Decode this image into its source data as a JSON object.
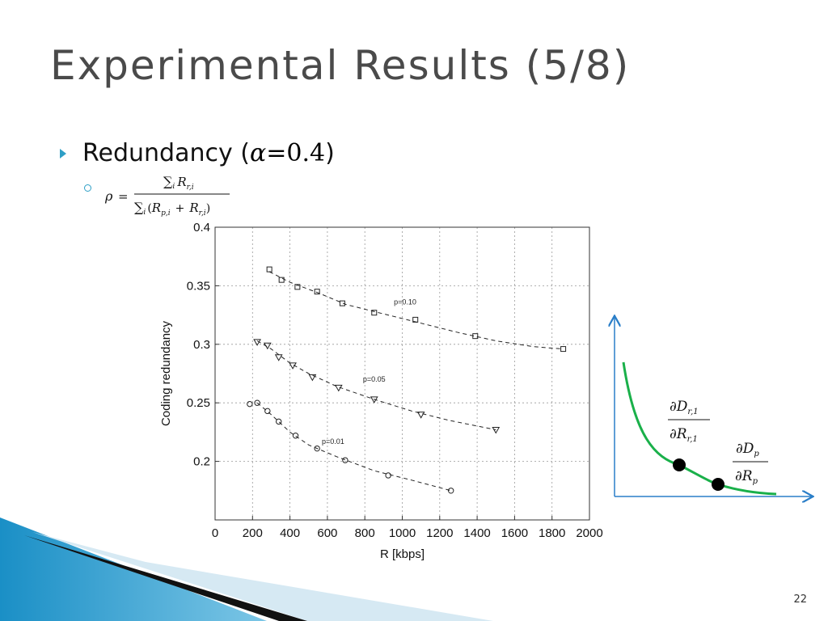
{
  "slide": {
    "title": "Experimental Results (5/8)",
    "bullet_text": "Redundancy (",
    "bullet_alpha": "α",
    "bullet_eq": "=0.4",
    "bullet_close": ")",
    "formula": {
      "lhs": "ρ =",
      "numerator": "∑ᵢ R_{r,i}",
      "denominator": "∑ᵢ (R_{p,i} + R_{r,i})"
    },
    "slide_number": "22"
  },
  "chart_data": {
    "type": "scatter",
    "xlabel": "R [kbps]",
    "ylabel": "Coding redundancy",
    "xlim": [
      0,
      2000
    ],
    "ylim": [
      0.15,
      0.4
    ],
    "xticks": [
      "0",
      "200",
      "400",
      "600",
      "800",
      "1000",
      "1200",
      "1400",
      "1600",
      "1800",
      "2000"
    ],
    "yticks": [
      "0.2",
      "0.25",
      "0.3",
      "0.35",
      "0.4"
    ],
    "grid": true,
    "series": [
      {
        "name": "p=0.10",
        "marker": "square",
        "points": [
          [
            290,
            0.364
          ],
          [
            355,
            0.355
          ],
          [
            440,
            0.349
          ],
          [
            545,
            0.345
          ],
          [
            680,
            0.335
          ],
          [
            850,
            0.327
          ],
          [
            1070,
            0.321
          ],
          [
            1390,
            0.307
          ],
          [
            1860,
            0.296
          ]
        ],
        "curve": [
          [
            290,
            0.362
          ],
          [
            400,
            0.353
          ],
          [
            550,
            0.344
          ],
          [
            700,
            0.334
          ],
          [
            900,
            0.326
          ],
          [
            1100,
            0.318
          ],
          [
            1300,
            0.31
          ],
          [
            1500,
            0.303
          ],
          [
            1700,
            0.298
          ],
          [
            1860,
            0.296
          ]
        ],
        "label_pos": [
          955,
          0.334
        ]
      },
      {
        "name": "p=0.05",
        "marker": "triangle",
        "points": [
          [
            225,
            0.302
          ],
          [
            280,
            0.299
          ],
          [
            340,
            0.289
          ],
          [
            415,
            0.282
          ],
          [
            520,
            0.272
          ],
          [
            660,
            0.263
          ],
          [
            850,
            0.253
          ],
          [
            1100,
            0.24
          ],
          [
            1500,
            0.227
          ]
        ],
        "curve": [
          [
            225,
            0.303
          ],
          [
            300,
            0.296
          ],
          [
            400,
            0.284
          ],
          [
            500,
            0.275
          ],
          [
            650,
            0.264
          ],
          [
            850,
            0.253
          ],
          [
            1050,
            0.243
          ],
          [
            1250,
            0.235
          ],
          [
            1500,
            0.227
          ]
        ],
        "label_pos": [
          790,
          0.268
        ]
      },
      {
        "name": "p=0.01",
        "marker": "circle",
        "points": [
          [
            185,
            0.249
          ],
          [
            225,
            0.25
          ],
          [
            280,
            0.243
          ],
          [
            340,
            0.234
          ],
          [
            430,
            0.222
          ],
          [
            545,
            0.211
          ],
          [
            695,
            0.201
          ],
          [
            925,
            0.188
          ],
          [
            1260,
            0.175
          ]
        ],
        "curve": [
          [
            225,
            0.25
          ],
          [
            300,
            0.24
          ],
          [
            400,
            0.225
          ],
          [
            500,
            0.214
          ],
          [
            650,
            0.204
          ],
          [
            850,
            0.192
          ],
          [
            1050,
            0.184
          ],
          [
            1260,
            0.175
          ]
        ],
        "label_pos": [
          570,
          0.215
        ]
      }
    ]
  },
  "inset": {
    "dr_num": "∂D",
    "dr_num_sub": "r,1",
    "dr_den": "∂R",
    "dr_den_sub": "r,1",
    "dp_num": "∂D",
    "dp_num_sub": "p",
    "dp_den": "∂R",
    "dp_den_sub": "p",
    "curve_color": "#1ab04a",
    "axis_color": "#2a7ec8"
  }
}
